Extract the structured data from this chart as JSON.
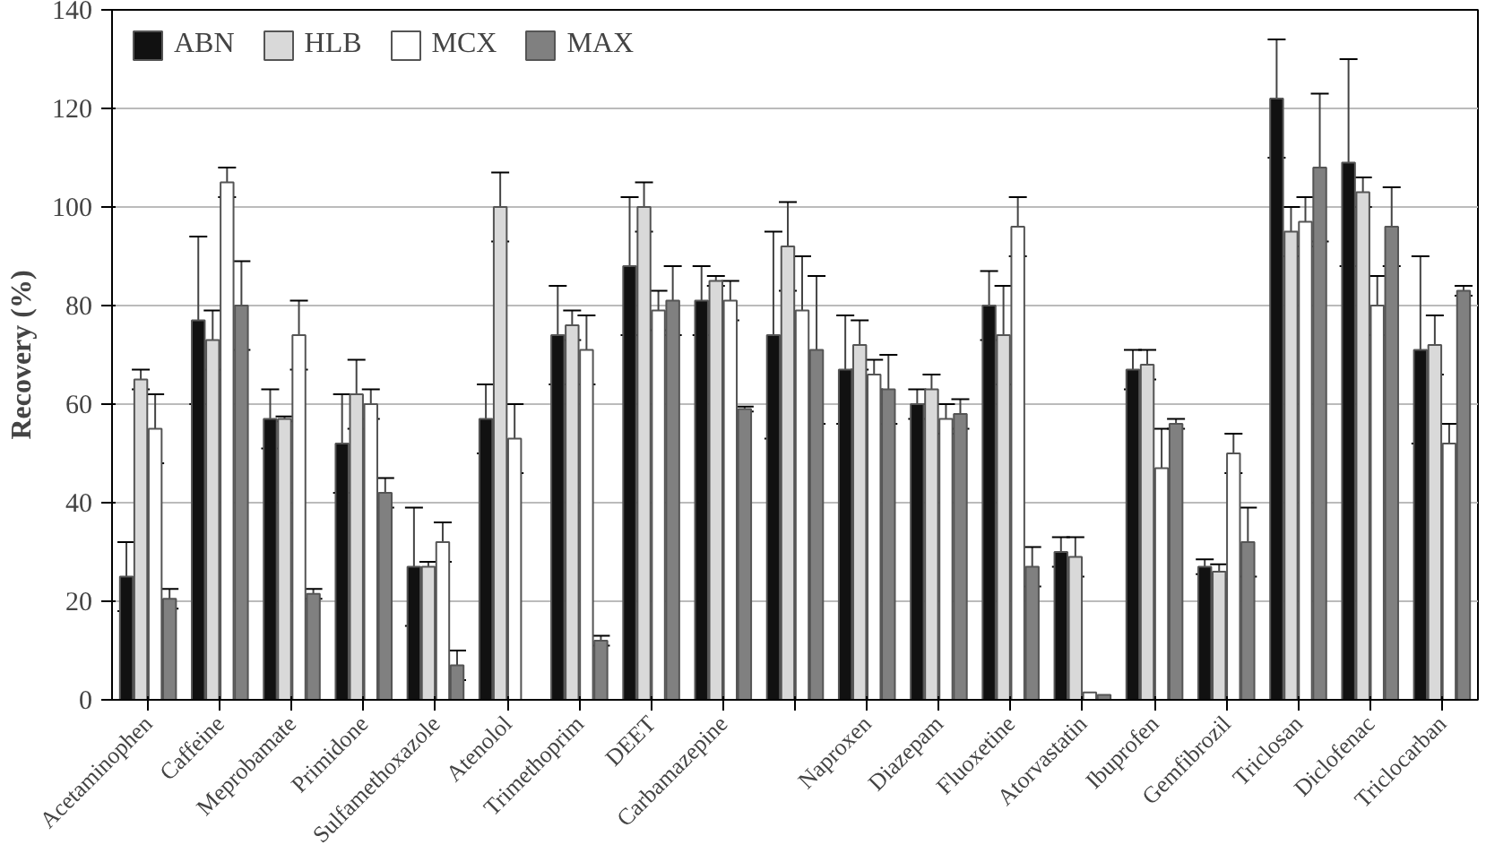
{
  "chart_data": {
    "type": "bar",
    "ylabel": "Recovery (%)",
    "categories": [
      "Acetaminophen",
      "Caffeine",
      "Meprobamate",
      "Primidone",
      "Sulfamethoxazole",
      "Atenolol",
      "Trimethoprim",
      "DEET",
      "Carbamazepine",
      null,
      "Naproxen",
      "Diazepam",
      "Fluoxetine",
      "Atorvastatin",
      "Ibuprofen",
      "Gemfibrozil",
      "Triclosan",
      "Diclofenac",
      "Triclocarban"
    ],
    "series": [
      {
        "name": "ABN",
        "color": "#111111",
        "values": [
          25,
          77,
          57,
          52,
          27,
          57,
          74,
          88,
          81,
          74,
          67,
          60,
          80,
          30,
          67,
          27,
          122,
          109,
          71
        ],
        "errors": [
          7,
          17,
          6,
          10,
          12,
          7,
          10,
          14,
          7,
          21,
          11,
          3,
          7,
          3,
          4,
          1.5,
          12,
          21,
          19
        ]
      },
      {
        "name": "HLB",
        "color": "#d9d9d9",
        "values": [
          65,
          73,
          57,
          62,
          27,
          100,
          76,
          100,
          85,
          92,
          72,
          63,
          74,
          29,
          68,
          26,
          95,
          103,
          72
        ],
        "errors": [
          2,
          6,
          0.5,
          7,
          1,
          7,
          3,
          5,
          1,
          9,
          5,
          3,
          10,
          4,
          3,
          1.5,
          5,
          3,
          6
        ]
      },
      {
        "name": "MCX",
        "color": "#ffffff",
        "values": [
          55,
          105,
          74,
          60,
          32,
          53,
          71,
          79,
          81,
          79,
          66,
          57,
          96,
          1.5,
          47,
          50,
          97,
          80,
          52
        ],
        "errors": [
          7,
          3,
          7,
          3,
          4,
          7,
          7,
          4,
          4,
          11,
          3,
          3,
          6,
          null,
          8,
          4,
          5,
          6,
          4
        ]
      },
      {
        "name": "MAX",
        "color": "#808080",
        "values": [
          20.5,
          80,
          21.5,
          42,
          7,
          null,
          12,
          81,
          59,
          71,
          63,
          58,
          27,
          1,
          56,
          32,
          108,
          96,
          83
        ],
        "errors": [
          2,
          9,
          1,
          3,
          3,
          null,
          1,
          7,
          0.5,
          15,
          7,
          3,
          4,
          null,
          1,
          7,
          15,
          8,
          1
        ]
      }
    ],
    "ylim": [
      0,
      140
    ],
    "yticks": [
      0,
      20,
      40,
      60,
      80,
      100,
      120,
      140
    ],
    "grid": "y",
    "legend": "top left"
  }
}
